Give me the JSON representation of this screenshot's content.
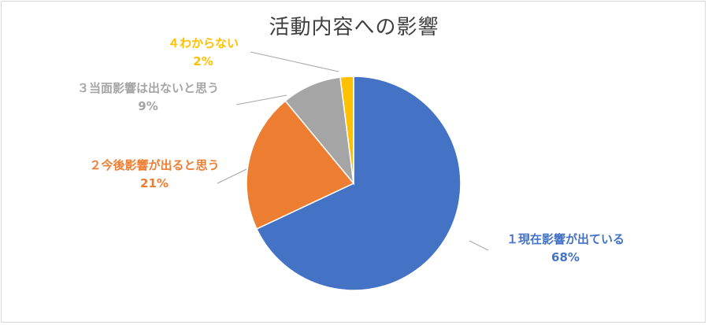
{
  "chart_data": {
    "type": "pie",
    "title": "活動内容への影響",
    "start_angle_deg": 0,
    "direction": "clockwise",
    "slices": [
      {
        "label": "１現在影響が出ている",
        "percent_label": "68%",
        "value": 68,
        "color": "#4472C4"
      },
      {
        "label": "２今後影響が出ると思う",
        "percent_label": "21%",
        "value": 21,
        "color": "#ED7D31"
      },
      {
        "label": "３当面影響は出ないと思う",
        "percent_label": "9%",
        "value": 9,
        "color": "#A5A5A5"
      },
      {
        "label": "４わからない",
        "percent_label": "2%",
        "value": 2,
        "color": "#FFC000"
      }
    ]
  }
}
